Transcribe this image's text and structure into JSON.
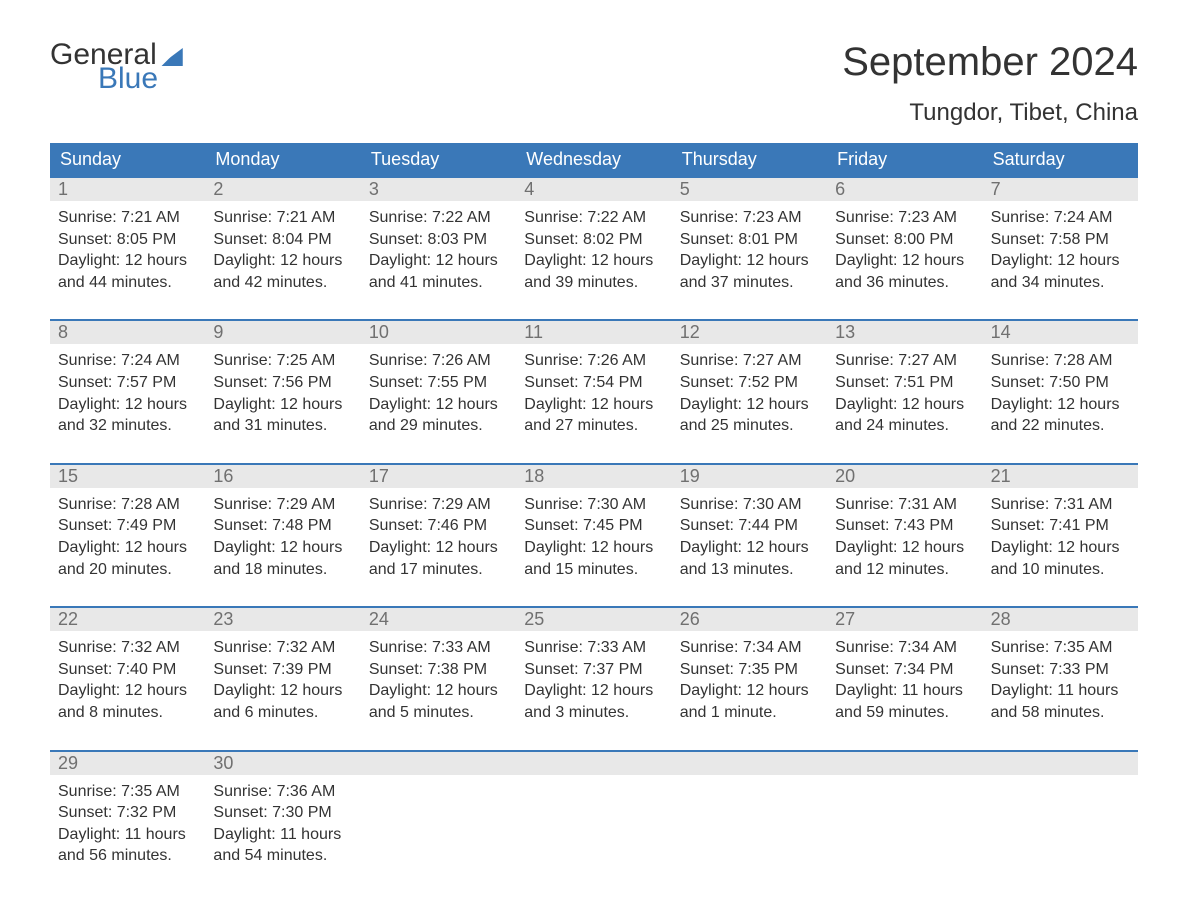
{
  "brand": {
    "word1": "General",
    "word2": "Blue"
  },
  "title": "September 2024",
  "location": "Tungdor, Tibet, China",
  "colors": {
    "header_bg": "#3a78b8",
    "header_text": "#ffffff",
    "daynum_bg": "#e8e8e8",
    "daynum_text": "#707070",
    "body_text": "#333333",
    "week_border": "#3a78b8",
    "brand_blue": "#3a78b8",
    "background": "#ffffff"
  },
  "typography": {
    "title_fontsize": 40,
    "location_fontsize": 24,
    "weekday_fontsize": 18,
    "daynum_fontsize": 18,
    "body_fontsize": 16,
    "font_family": "Arial"
  },
  "labels": {
    "sunrise": "Sunrise:",
    "sunset": "Sunset:",
    "daylight": "Daylight:"
  },
  "weekdays": [
    "Sunday",
    "Monday",
    "Tuesday",
    "Wednesday",
    "Thursday",
    "Friday",
    "Saturday"
  ],
  "weeks": [
    [
      {
        "n": 1,
        "sunrise": "7:21 AM",
        "sunset": "8:05 PM",
        "daylight": "12 hours and 44 minutes."
      },
      {
        "n": 2,
        "sunrise": "7:21 AM",
        "sunset": "8:04 PM",
        "daylight": "12 hours and 42 minutes."
      },
      {
        "n": 3,
        "sunrise": "7:22 AM",
        "sunset": "8:03 PM",
        "daylight": "12 hours and 41 minutes."
      },
      {
        "n": 4,
        "sunrise": "7:22 AM",
        "sunset": "8:02 PM",
        "daylight": "12 hours and 39 minutes."
      },
      {
        "n": 5,
        "sunrise": "7:23 AM",
        "sunset": "8:01 PM",
        "daylight": "12 hours and 37 minutes."
      },
      {
        "n": 6,
        "sunrise": "7:23 AM",
        "sunset": "8:00 PM",
        "daylight": "12 hours and 36 minutes."
      },
      {
        "n": 7,
        "sunrise": "7:24 AM",
        "sunset": "7:58 PM",
        "daylight": "12 hours and 34 minutes."
      }
    ],
    [
      {
        "n": 8,
        "sunrise": "7:24 AM",
        "sunset": "7:57 PM",
        "daylight": "12 hours and 32 minutes."
      },
      {
        "n": 9,
        "sunrise": "7:25 AM",
        "sunset": "7:56 PM",
        "daylight": "12 hours and 31 minutes."
      },
      {
        "n": 10,
        "sunrise": "7:26 AM",
        "sunset": "7:55 PM",
        "daylight": "12 hours and 29 minutes."
      },
      {
        "n": 11,
        "sunrise": "7:26 AM",
        "sunset": "7:54 PM",
        "daylight": "12 hours and 27 minutes."
      },
      {
        "n": 12,
        "sunrise": "7:27 AM",
        "sunset": "7:52 PM",
        "daylight": "12 hours and 25 minutes."
      },
      {
        "n": 13,
        "sunrise": "7:27 AM",
        "sunset": "7:51 PM",
        "daylight": "12 hours and 24 minutes."
      },
      {
        "n": 14,
        "sunrise": "7:28 AM",
        "sunset": "7:50 PM",
        "daylight": "12 hours and 22 minutes."
      }
    ],
    [
      {
        "n": 15,
        "sunrise": "7:28 AM",
        "sunset": "7:49 PM",
        "daylight": "12 hours and 20 minutes."
      },
      {
        "n": 16,
        "sunrise": "7:29 AM",
        "sunset": "7:48 PM",
        "daylight": "12 hours and 18 minutes."
      },
      {
        "n": 17,
        "sunrise": "7:29 AM",
        "sunset": "7:46 PM",
        "daylight": "12 hours and 17 minutes."
      },
      {
        "n": 18,
        "sunrise": "7:30 AM",
        "sunset": "7:45 PM",
        "daylight": "12 hours and 15 minutes."
      },
      {
        "n": 19,
        "sunrise": "7:30 AM",
        "sunset": "7:44 PM",
        "daylight": "12 hours and 13 minutes."
      },
      {
        "n": 20,
        "sunrise": "7:31 AM",
        "sunset": "7:43 PM",
        "daylight": "12 hours and 12 minutes."
      },
      {
        "n": 21,
        "sunrise": "7:31 AM",
        "sunset": "7:41 PM",
        "daylight": "12 hours and 10 minutes."
      }
    ],
    [
      {
        "n": 22,
        "sunrise": "7:32 AM",
        "sunset": "7:40 PM",
        "daylight": "12 hours and 8 minutes."
      },
      {
        "n": 23,
        "sunrise": "7:32 AM",
        "sunset": "7:39 PM",
        "daylight": "12 hours and 6 minutes."
      },
      {
        "n": 24,
        "sunrise": "7:33 AM",
        "sunset": "7:38 PM",
        "daylight": "12 hours and 5 minutes."
      },
      {
        "n": 25,
        "sunrise": "7:33 AM",
        "sunset": "7:37 PM",
        "daylight": "12 hours and 3 minutes."
      },
      {
        "n": 26,
        "sunrise": "7:34 AM",
        "sunset": "7:35 PM",
        "daylight": "12 hours and 1 minute."
      },
      {
        "n": 27,
        "sunrise": "7:34 AM",
        "sunset": "7:34 PM",
        "daylight": "11 hours and 59 minutes."
      },
      {
        "n": 28,
        "sunrise": "7:35 AM",
        "sunset": "7:33 PM",
        "daylight": "11 hours and 58 minutes."
      }
    ],
    [
      {
        "n": 29,
        "sunrise": "7:35 AM",
        "sunset": "7:32 PM",
        "daylight": "11 hours and 56 minutes."
      },
      {
        "n": 30,
        "sunrise": "7:36 AM",
        "sunset": "7:30 PM",
        "daylight": "11 hours and 54 minutes."
      },
      null,
      null,
      null,
      null,
      null
    ]
  ]
}
